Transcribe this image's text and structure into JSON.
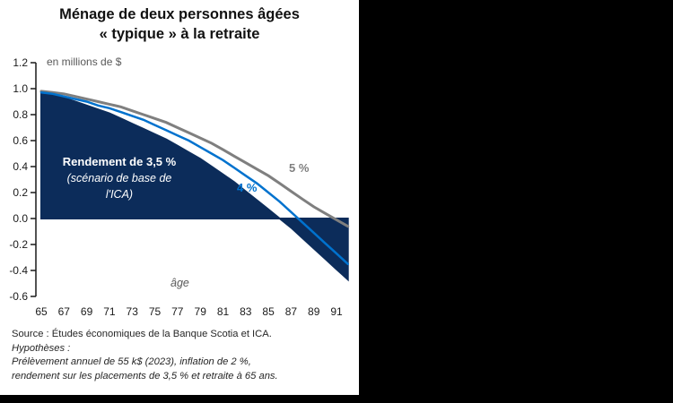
{
  "panel": {
    "title_line1": "Ménage de deux personnes âgées",
    "title_line2": "« typique » à la retraite",
    "unit_label": "en millions de $",
    "x_axis_label": "âge",
    "annotation": {
      "line1": "Rendement de 3,5 %",
      "line2": "(scénario de base de",
      "line3": "l'ICA)"
    },
    "source": "Source : Études économiques de la Banque Scotia et ICA.",
    "hypotheses_title": "Hypothèses :",
    "hypotheses_line1": "Prélèvement annuel de 55 k$ (2023), inflation de 2 %,",
    "hypotheses_line2": "rendement sur les placements de 3,5 % et retraite à 65 ans."
  },
  "colors": {
    "navy_area": "#0C2C5A",
    "blue_line": "#0072CE",
    "grey_line": "#7F7F7F",
    "axis": "#1A1A1A",
    "muted_text": "#595959",
    "annotation_text": "#FFFFFF",
    "background": "#000000",
    "panel": "#FFFFFF"
  },
  "chart_data": {
    "type": "area",
    "title": "Ménage de deux personnes âgées « typique » à la retraite",
    "ylabel": "en millions de $",
    "xlabel": "âge",
    "ylim": [
      -0.6,
      1.2
    ],
    "grid": false,
    "legend_position": "inline-labels",
    "x": [
      65,
      66,
      67,
      68,
      69,
      70,
      71,
      72,
      73,
      74,
      75,
      76,
      77,
      78,
      79,
      80,
      81,
      82,
      83,
      84,
      85,
      86,
      87,
      88,
      89,
      90,
      91,
      92
    ],
    "x_tick_labels": [
      65,
      67,
      69,
      71,
      73,
      75,
      77,
      79,
      81,
      83,
      85,
      87,
      89,
      91
    ],
    "y_ticks": [
      1.2,
      1.0,
      0.8,
      0.6,
      0.4,
      0.2,
      0.0,
      -0.2,
      -0.4,
      -0.6
    ],
    "y_tick_labels": [
      "1.2",
      "1.0",
      "0.8",
      "0.6",
      "0.4",
      "0.2",
      "0.0",
      "-0.2",
      "-0.4",
      "-0.6"
    ],
    "series": [
      {
        "name": "Rendement de 3,5 % (scénario de base de l'ICA)",
        "type": "area",
        "color": "#0C2C5A",
        "values": [
          0.97,
          0.95,
          0.93,
          0.9,
          0.87,
          0.84,
          0.81,
          0.77,
          0.73,
          0.69,
          0.65,
          0.61,
          0.56,
          0.51,
          0.46,
          0.4,
          0.34,
          0.28,
          0.21,
          0.14,
          0.07,
          0.0,
          -0.07,
          -0.15,
          -0.23,
          -0.31,
          -0.39,
          -0.47
        ]
      },
      {
        "name": "4 %",
        "type": "line",
        "color": "#0072CE",
        "values": [
          0.97,
          0.96,
          0.94,
          0.92,
          0.9,
          0.87,
          0.85,
          0.82,
          0.79,
          0.76,
          0.72,
          0.68,
          0.64,
          0.6,
          0.55,
          0.5,
          0.45,
          0.39,
          0.33,
          0.27,
          0.2,
          0.13,
          0.05,
          -0.03,
          -0.11,
          -0.19,
          -0.27,
          -0.35
        ]
      },
      {
        "name": "5 %",
        "type": "line",
        "color": "#7F7F7F",
        "values": [
          0.98,
          0.97,
          0.96,
          0.94,
          0.92,
          0.9,
          0.88,
          0.86,
          0.83,
          0.8,
          0.77,
          0.74,
          0.7,
          0.66,
          0.62,
          0.58,
          0.53,
          0.48,
          0.43,
          0.38,
          0.33,
          0.27,
          0.21,
          0.15,
          0.09,
          0.04,
          -0.01,
          -0.06
        ]
      }
    ]
  }
}
